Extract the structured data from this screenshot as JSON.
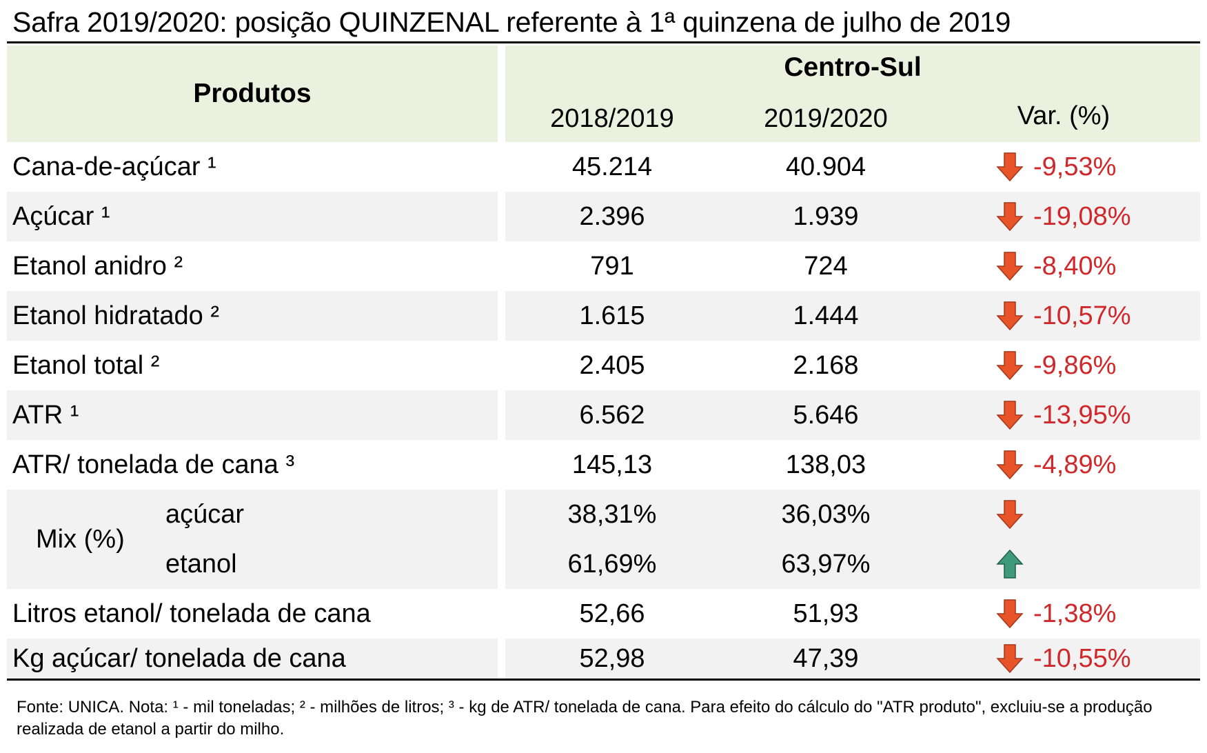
{
  "title": "Safra 2019/2020: posição QUINZENAL referente à 1ª quinzena de julho de 2019",
  "header": {
    "products": "Produtos",
    "region": "Centro-Sul",
    "col_prev": "2018/2019",
    "col_curr": "2019/2020",
    "col_var": "Var. (%)"
  },
  "rows": [
    {
      "label": "Cana-de-açúcar ¹",
      "prev": "45.214",
      "curr": "40.904",
      "var": "-9,53%",
      "dir": "down"
    },
    {
      "label": "Açúcar ¹",
      "prev": "2.396",
      "curr": "1.939",
      "var": "-19,08%",
      "dir": "down"
    },
    {
      "label": "Etanol anidro ²",
      "prev": "791",
      "curr": "724",
      "var": "-8,40%",
      "dir": "down"
    },
    {
      "label": "Etanol hidratado ²",
      "prev": "1.615",
      "curr": "1.444",
      "var": "-10,57%",
      "dir": "down"
    },
    {
      "label": "Etanol total ²",
      "prev": "2.405",
      "curr": "2.168",
      "var": "-9,86%",
      "dir": "down"
    },
    {
      "label": "ATR ¹",
      "prev": "6.562",
      "curr": "5.646",
      "var": "-13,95%",
      "dir": "down"
    },
    {
      "label": "ATR/ tonelada de cana ³",
      "prev": "145,13",
      "curr": "138,03",
      "var": "-4,89%",
      "dir": "down"
    }
  ],
  "mix": {
    "label": "Mix (%)",
    "rows": [
      {
        "label": "açúcar",
        "prev": "38,31%",
        "curr": "36,03%",
        "dir": "down"
      },
      {
        "label": "etanol",
        "prev": "61,69%",
        "curr": "63,97%",
        "dir": "up"
      }
    ]
  },
  "rows_after": [
    {
      "label": "Litros etanol/ tonelada de cana",
      "prev": "52,66",
      "curr": "51,93",
      "var": "-1,38%",
      "dir": "down"
    },
    {
      "label": "Kg açúcar/ tonelada de cana",
      "prev": "52,98",
      "curr": "47,39",
      "var": "-10,55%",
      "dir": "down"
    }
  ],
  "footnote": "Fonte: UNICA. Nota: ¹ - mil toneladas; ² - milhões de litros; ³ - kg de ATR/ tonelada de cana. Para efeito do cálculo do \"ATR produto\", excluiu-se a produção realizada de etanol a partir do milho.",
  "colors": {
    "header_bg": "#ebf1de",
    "band_bg": "#f2f2f2",
    "down_arrow": "#e8542a",
    "up_arrow": "#3f9a7c",
    "negative_text": "#d0282a"
  },
  "chart_data": {
    "type": "table",
    "title": "Safra 2019/2020: posição QUINZENAL referente à 1ª quinzena de julho de 2019",
    "columns": [
      "Produtos",
      "2018/2019",
      "2019/2020",
      "Var. (%)"
    ],
    "region": "Centro-Sul"
  }
}
